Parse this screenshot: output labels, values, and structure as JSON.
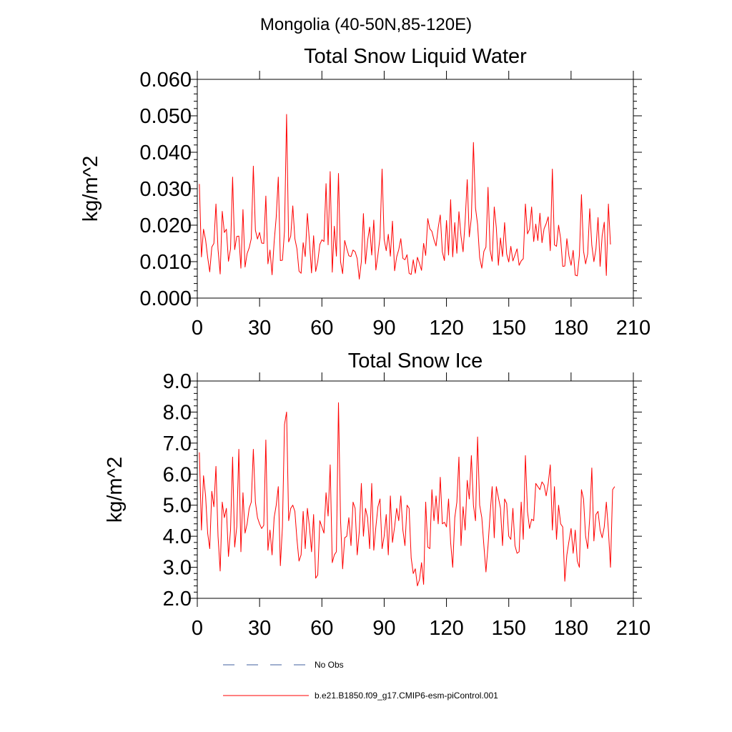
{
  "suptitle": "Mongolia (40-50N,85-120E)",
  "colors": {
    "series": "#ff0000",
    "no_obs": "#3f5f9f",
    "axis": "#000000"
  },
  "legend": {
    "items": [
      {
        "label": "No Obs",
        "style": "dashed",
        "color": "#3f5f9f"
      },
      {
        "label": "b.e21.B1850.f09_g17.CMIP6-esm-piControl.001",
        "style": "solid",
        "color": "#ff0000"
      }
    ]
  },
  "chart_data": [
    {
      "type": "line",
      "title": "Total Snow Liquid Water",
      "xlabel": "",
      "ylabel": "kg/m^2",
      "xlim": [
        0,
        210
      ],
      "ylim": [
        0,
        0.06
      ],
      "xticks": [
        0,
        30,
        60,
        90,
        120,
        150,
        180,
        210
      ],
      "xtick_labels": [
        "0",
        "30",
        "60",
        "90",
        "120",
        "150",
        "180",
        "210"
      ],
      "yticks": [
        0,
        0.01,
        0.02,
        0.03,
        0.04,
        0.05,
        0.06
      ],
      "ytick_labels": [
        "0.000",
        "0.010",
        "0.020",
        "0.030",
        "0.040",
        "0.050",
        "0.060"
      ],
      "grid": false,
      "series": [
        {
          "name": "b.e21.B1850.f09_g17.CMIP6-esm-piControl.001",
          "x_start": 1,
          "x_step": 1,
          "values": [
            0.0313,
            0.0113,
            0.0189,
            0.016,
            0.0112,
            0.0072,
            0.014,
            0.015,
            0.0258,
            0.0134,
            0.0066,
            0.0238,
            0.018,
            0.0189,
            0.0101,
            0.0135,
            0.0332,
            0.0133,
            0.0169,
            0.017,
            0.0082,
            0.0243,
            0.0085,
            0.0122,
            0.0138,
            0.0163,
            0.0362,
            0.0186,
            0.0162,
            0.018,
            0.0151,
            0.015,
            0.028,
            0.0094,
            0.0132,
            0.0064,
            0.0154,
            0.0222,
            0.0332,
            0.0103,
            0.0104,
            0.0184,
            0.0504,
            0.0154,
            0.017,
            0.0253,
            0.0163,
            0.0135,
            0.0074,
            0.0068,
            0.0152,
            0.0114,
            0.0232,
            0.0155,
            0.0069,
            0.0171,
            0.0073,
            0.01,
            0.0147,
            0.016,
            0.0155,
            0.0314,
            0.0146,
            0.0347,
            0.0071,
            0.0197,
            0.0115,
            0.0342,
            0.01,
            0.0067,
            0.0158,
            0.0136,
            0.0116,
            0.0114,
            0.0132,
            0.0127,
            0.0108,
            0.0052,
            0.01,
            0.0232,
            0.0094,
            0.0157,
            0.0195,
            0.0118,
            0.0214,
            0.0077,
            0.0119,
            0.0167,
            0.0354,
            0.0161,
            0.013,
            0.0175,
            0.0115,
            0.0211,
            0.0075,
            0.0113,
            0.0133,
            0.0163,
            0.0109,
            0.0105,
            0.0119,
            0.0068,
            0.0065,
            0.0105,
            0.0068,
            0.0112,
            0.0095,
            0.0076,
            0.015,
            0.0117,
            0.0218,
            0.019,
            0.0183,
            0.016,
            0.0143,
            0.0193,
            0.0228,
            0.0127,
            0.0103,
            0.0213,
            0.0118,
            0.027,
            0.0113,
            0.0207,
            0.0123,
            0.0237,
            0.017,
            0.0127,
            0.0211,
            0.0325,
            0.0168,
            0.0221,
            0.0427,
            0.0247,
            0.0202,
            0.0111,
            0.0082,
            0.0128,
            0.014,
            0.0304,
            0.0132,
            0.0101,
            0.025,
            0.0193,
            0.009,
            0.0165,
            0.0114,
            0.0207,
            0.0121,
            0.0099,
            0.0142,
            0.0102,
            0.0118,
            0.0135,
            0.009,
            0.0102,
            0.0108,
            0.0258,
            0.0176,
            0.0189,
            0.025,
            0.0155,
            0.0203,
            0.0158,
            0.0233,
            0.0152,
            0.019,
            0.0204,
            0.0223,
            0.013,
            0.0354,
            0.0146,
            0.0142,
            0.02,
            0.0163,
            0.0087,
            0.0088,
            0.0163,
            0.0115,
            0.009,
            0.0131,
            0.0063,
            0.0061,
            0.0117,
            0.0284,
            0.0129,
            0.0094,
            0.0121,
            0.0245,
            0.0145,
            0.01,
            0.0135,
            0.0221,
            0.0087,
            0.0172,
            0.0208,
            0.0062,
            0.0258,
            0.0147
          ]
        }
      ]
    },
    {
      "type": "line",
      "title": "Total Snow Ice",
      "xlabel": "",
      "ylabel": "kg/m^2",
      "xlim": [
        0,
        210
      ],
      "ylim": [
        2,
        9
      ],
      "xticks": [
        0,
        30,
        60,
        90,
        120,
        150,
        180,
        210
      ],
      "xtick_labels": [
        "0",
        "30",
        "60",
        "90",
        "120",
        "150",
        "180",
        "210"
      ],
      "yticks": [
        2,
        3,
        4,
        5,
        6,
        7,
        8,
        9
      ],
      "ytick_labels": [
        "2.0",
        "3.0",
        "4.0",
        "5.0",
        "6.0",
        "7.0",
        "8.0",
        "9.0"
      ],
      "grid": false,
      "series": [
        {
          "name": "b.e21.B1850.f09_g17.CMIP6-esm-piControl.001",
          "x_start": 1,
          "x_step": 1,
          "values": [
            6.7,
            4.2,
            5.95,
            5.3,
            4.1,
            3.6,
            5.45,
            4.95,
            6.25,
            4.0,
            2.88,
            5.1,
            4.6,
            4.9,
            3.35,
            4.2,
            6.55,
            3.65,
            4.3,
            6.8,
            3.5,
            5.4,
            4.1,
            4.4,
            4.9,
            5.1,
            6.8,
            5.1,
            4.6,
            4.4,
            4.25,
            4.35,
            7.1,
            3.55,
            4.2,
            3.4,
            4.6,
            5.0,
            5.6,
            3.05,
            4.3,
            7.6,
            8.0,
            4.5,
            4.9,
            5.0,
            4.8,
            3.9,
            3.2,
            3.4,
            4.8,
            3.6,
            4.9,
            4.3,
            3.5,
            4.7,
            2.65,
            2.75,
            4.5,
            4.3,
            4.1,
            5.4,
            4.65,
            6.3,
            3.15,
            3.4,
            3.5,
            8.3,
            4.5,
            2.95,
            3.95,
            4.0,
            4.6,
            3.7,
            5.1,
            4.9,
            3.4,
            4.15,
            5.7,
            4.0,
            4.9,
            4.6,
            3.6,
            5.7,
            3.55,
            4.3,
            4.95,
            5.2,
            3.6,
            4.0,
            4.7,
            3.4,
            5.3,
            3.8,
            4.3,
            4.9,
            4.5,
            5.3,
            4.2,
            3.7,
            5.0,
            4.9,
            3.3,
            2.8,
            2.95,
            2.4,
            2.6,
            3.15,
            2.45,
            5.1,
            3.65,
            3.6,
            5.5,
            4.5,
            5.3,
            4.4,
            5.9,
            4.4,
            4.45,
            4.3,
            5.2,
            3.8,
            3.0,
            4.6,
            5.1,
            6.55,
            3.7,
            4.95,
            4.2,
            5.8,
            5.2,
            6.6,
            5.0,
            4.5,
            7.2,
            5.0,
            4.6,
            3.7,
            2.85,
            3.7,
            4.7,
            5.6,
            3.95,
            5.6,
            5.25,
            4.9,
            3.7,
            5.2,
            5.05,
            4.0,
            3.9,
            4.9,
            3.7,
            3.45,
            3.5,
            5.1,
            3.9,
            6.6,
            4.8,
            4.25,
            4.55,
            4.5,
            5.7,
            5.6,
            5.5,
            5.75,
            5.65,
            5.3,
            5.7,
            6.3,
            4.2,
            5.6,
            3.9,
            5.0,
            4.4,
            4.3,
            2.55,
            3.4,
            3.85,
            4.25,
            3.45,
            4.2,
            3.2,
            3.0,
            5.5,
            5.2,
            4.0,
            3.6,
            4.6,
            6.2,
            3.85,
            4.7,
            4.8,
            4.2,
            3.95,
            4.3,
            5.1,
            4.2,
            3.0,
            5.5,
            5.6
          ]
        }
      ]
    }
  ]
}
